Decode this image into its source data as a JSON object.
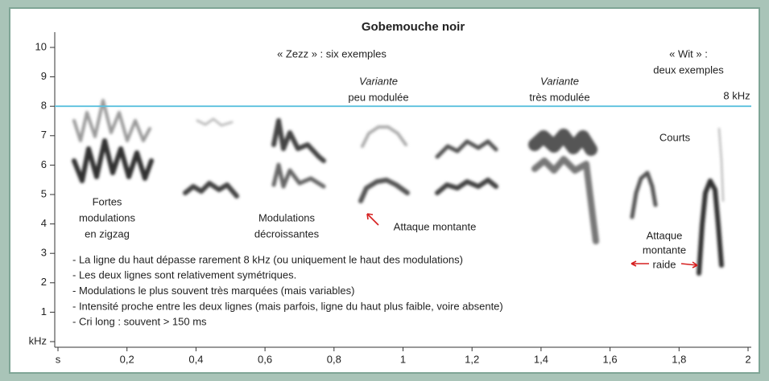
{
  "chart_data": {
    "type": "spectrogram",
    "title": "Gobemouche noir",
    "xlim": [
      0,
      2.03
    ],
    "ylim": [
      0,
      10.7
    ],
    "xticks": [
      {
        "value": 0,
        "label": "s"
      },
      {
        "value": 0.2,
        "label": "0,2"
      },
      {
        "value": 0.4,
        "label": "0,4"
      },
      {
        "value": 0.6,
        "label": "0,6"
      },
      {
        "value": 0.8,
        "label": "0,8"
      },
      1,
      {
        "value": 1.2,
        "label": "1,2"
      },
      {
        "value": 1.4,
        "label": "1,4"
      },
      {
        "value": 1.6,
        "label": "1,6"
      },
      {
        "value": 1.8,
        "label": "1,8"
      },
      2
    ],
    "yticks": [
      {
        "value": 0,
        "label": "kHz"
      },
      1,
      2,
      3,
      4,
      5,
      6,
      7,
      8,
      9,
      10
    ],
    "reference_line": {
      "value": 8,
      "label": "8 kHz",
      "color": "#5bc0de"
    },
    "annotations": [
      [
        "« Zezz » : six exemples"
      ],
      [
        "« Wit » :",
        "deux exemples"
      ],
      [
        "Variante",
        "peu modulée"
      ],
      [
        "Variante",
        "très modulée"
      ],
      [
        "Courts"
      ],
      [
        "Fortes",
        "modulations",
        "en zigzag"
      ],
      [
        "Modulations",
        "décroissantes"
      ],
      [
        "Attaque montante"
      ],
      [
        "Attaque",
        "montante",
        "raide"
      ]
    ],
    "notes": [
      "- La ligne du haut dépasse rarement 8 kHz (ou uniquement le haut des modulations)",
      "- Les deux lignes sont relativement symétriques.",
      "- Modulations le plus souvent très marquées (mais variables)",
      "- Intensité proche entre les deux lignes (mais parfois, ligne du haut plus faible, voire absente)",
      "- Cri long : souvent > 150 ms"
    ]
  }
}
